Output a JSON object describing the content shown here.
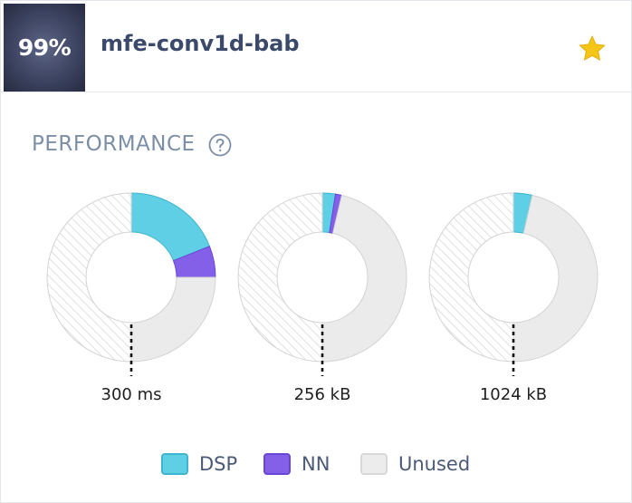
{
  "header": {
    "score": "99%",
    "title": "mfe-conv1d-bab",
    "star_icon": "star-icon",
    "star_color": "#f5c518"
  },
  "performance": {
    "title": "PERFORMANCE",
    "help_icon": "question-circle-icon"
  },
  "colors": {
    "dsp": "#5fcfe6",
    "nn": "#8460e8",
    "unused": "#ebebeb",
    "hatch": "#d9d9d9"
  },
  "charts": [
    {
      "label": "300 ms",
      "dsp": 0.19,
      "nn": 0.06
    },
    {
      "label": "256 kB",
      "dsp": 0.025,
      "nn": 0.012
    },
    {
      "label": "1024 kB",
      "dsp": 0.036,
      "nn": 0
    }
  ],
  "legend": [
    {
      "key": "dsp",
      "label": "DSP",
      "color": "#5fcfe6",
      "border": "#3fb6cf"
    },
    {
      "key": "nn",
      "label": "NN",
      "color": "#8460e8",
      "border": "#6a45d6"
    },
    {
      "key": "unused",
      "label": "Unused",
      "color": "#ececec",
      "border": "#d8d8d8"
    }
  ]
}
